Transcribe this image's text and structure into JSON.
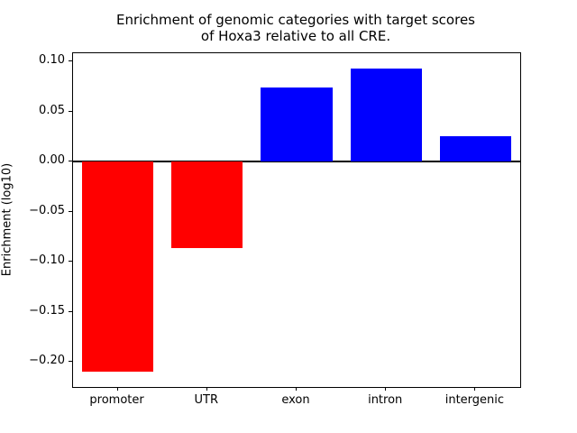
{
  "title": {
    "line1": "Enrichment of genomic categories with target scores",
    "line2": "of Hoxa3 relative to all CRE."
  },
  "chart_data": {
    "type": "bar",
    "title": "Enrichment of genomic categories with target scores of Hoxa3 relative to all CRE.",
    "categories": [
      "promoter",
      "UTR",
      "exon",
      "intron",
      "intergenic"
    ],
    "values": [
      -0.21,
      -0.086,
      0.074,
      0.093,
      0.025
    ],
    "bar_colors": [
      "#ff0000",
      "#ff0000",
      "#0000ff",
      "#0000ff",
      "#0000ff"
    ],
    "negative_color": "#ff0000",
    "positive_color": "#0000ff",
    "xlabel": "",
    "ylabel": "Enrichment (log10)",
    "ylim": [
      -0.2252,
      0.1082
    ],
    "yticks": [
      0.1,
      0.05,
      0.0,
      -0.05,
      -0.1,
      -0.15,
      -0.2
    ],
    "ytick_labels": [
      "0.10",
      "0.05",
      "0.00",
      "−0.05",
      "−0.10",
      "−0.15",
      "−0.20"
    ],
    "bar_width_fraction": 0.8,
    "grid": false,
    "legend": false,
    "zero_line": true
  }
}
